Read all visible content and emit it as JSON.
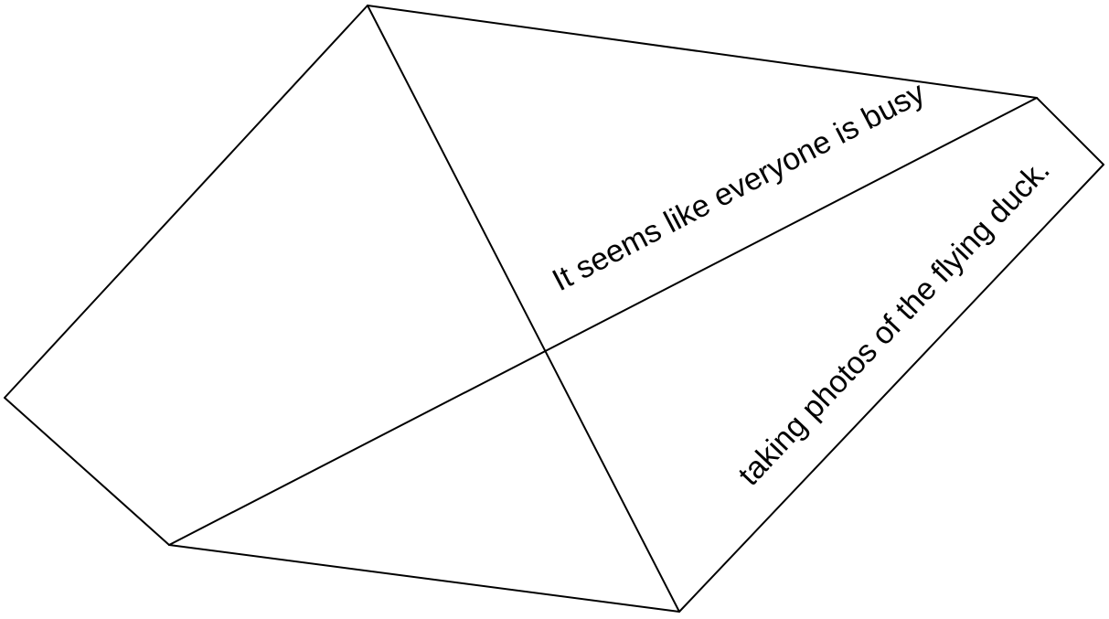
{
  "diagram": {
    "stroke_color": "#000000",
    "background_color": "#ffffff",
    "text_color": "#000000",
    "text_lines": {
      "line1": "It seems like everyone is busy",
      "line2": "taking photos of the flying duck."
    }
  }
}
